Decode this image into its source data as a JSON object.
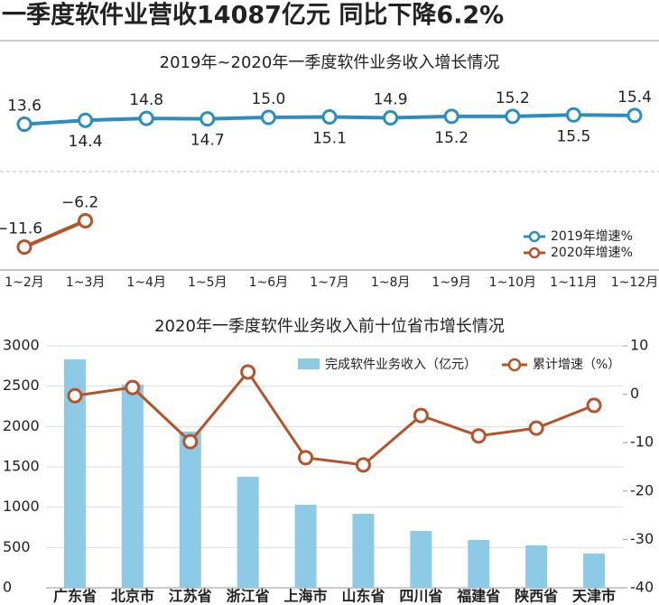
{
  "headline": "一季度软件业营收14087亿元 同比下降6.2%",
  "chart_data": [
    {
      "type": "line",
      "title": "2019年~2020年一季度软件业务收入增长情况",
      "categories": [
        "1~2月",
        "1~3月",
        "1~4月",
        "1~5月",
        "1~6月",
        "1~7月",
        "1~8月",
        "1~9月",
        "1~10月",
        "1~11月",
        "1~12月"
      ],
      "series": [
        {
          "name": "2019年增速%",
          "color": "#2c8dc0",
          "values": [
            13.6,
            14.4,
            14.8,
            14.7,
            15.0,
            15.1,
            14.9,
            15.2,
            15.2,
            15.5,
            15.4
          ],
          "value_labels": [
            "13.6",
            "14.4",
            "14.8",
            "14.7",
            "15.0",
            "15.1",
            "14.9",
            "15.2",
            "15.2",
            "15.5",
            "15.4"
          ]
        },
        {
          "name": "2020年增速%",
          "color": "#b5532a",
          "values": [
            -11.6,
            -6.2,
            null,
            null,
            null,
            null,
            null,
            null,
            null,
            null,
            null
          ],
          "value_labels": [
            "−11.6",
            "−6.2",
            null,
            null,
            null,
            null,
            null,
            null,
            null,
            null,
            null
          ]
        }
      ],
      "legend": "lower right"
    },
    {
      "type": "bar",
      "title": "2020年一季度软件业务收入前十位省市增长情况",
      "categories": [
        "广东省",
        "北京市",
        "江苏省",
        "浙江省",
        "上海市",
        "山东省",
        "四川省",
        "福建省",
        "陕西省",
        "天津市"
      ],
      "series": [
        {
          "name": "完成软件业务收入（亿元）",
          "type": "bar",
          "color": "#8ccae6",
          "values": [
            2833,
            2520,
            1937,
            1377,
            1030,
            918,
            705,
            593,
            526,
            425
          ]
        },
        {
          "name": "累计增速（%）",
          "type": "line",
          "axis": "y2",
          "color": "#b5532a",
          "values": [
            -0.3,
            1.4,
            -9.8,
            4.6,
            -13.1,
            -14.6,
            -4.4,
            -8.6,
            -7.0,
            -2.3
          ]
        }
      ],
      "ylim": [
        0,
        3000
      ],
      "yticks": [
        0,
        500,
        1000,
        1500,
        2000,
        2500,
        3000
      ],
      "y2lim": [
        -40,
        10
      ],
      "y2ticks": [
        -40,
        -30,
        -20,
        -10,
        0,
        10
      ],
      "grid": true,
      "legend": "upper right"
    }
  ]
}
